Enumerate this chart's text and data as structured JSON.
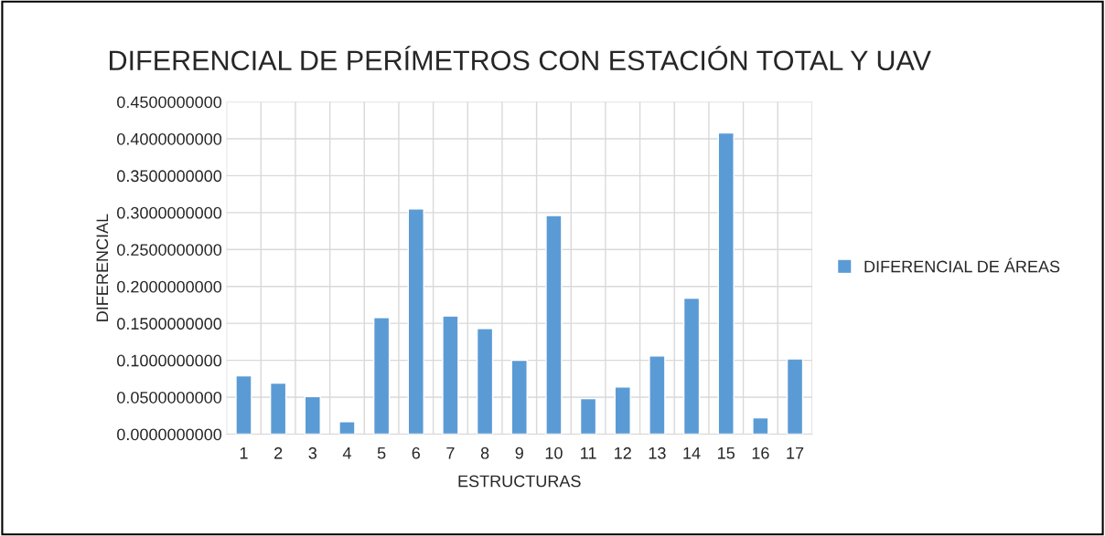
{
  "chart_data": {
    "type": "bar",
    "title": "DIFERENCIAL DE PERÍMETROS CON ESTACIÓN TOTAL Y UAV",
    "xlabel": "ESTRUCTURAS",
    "ylabel": "DIFERENCIAL",
    "categories": [
      "1",
      "2",
      "3",
      "4",
      "5",
      "6",
      "7",
      "8",
      "9",
      "10",
      "11",
      "12",
      "13",
      "14",
      "15",
      "16",
      "17"
    ],
    "series": [
      {
        "name": "DIFERENCIAL DE ÁREAS",
        "color": "#5b9bd5",
        "values": [
          0.079,
          0.069,
          0.051,
          0.017,
          0.158,
          0.305,
          0.16,
          0.143,
          0.1,
          0.296,
          0.048,
          0.064,
          0.106,
          0.184,
          0.408,
          0.022,
          0.102
        ]
      }
    ],
    "ylim": [
      0,
      0.45
    ],
    "yticks": [
      {
        "value": 0,
        "label": "0.0000000000"
      },
      {
        "value": 0.05,
        "label": "0.0500000000"
      },
      {
        "value": 0.1,
        "label": "0.1000000000"
      },
      {
        "value": 0.15,
        "label": "0.1500000000"
      },
      {
        "value": 0.2,
        "label": "0.2000000000"
      },
      {
        "value": 0.25,
        "label": "0.2500000000"
      },
      {
        "value": 0.3,
        "label": "0.3000000000"
      },
      {
        "value": 0.35,
        "label": "0.3500000000"
      },
      {
        "value": 0.4,
        "label": "0.4000000000"
      },
      {
        "value": 0.45,
        "label": "0.4500000000"
      }
    ],
    "grid": true,
    "legend": "right"
  }
}
